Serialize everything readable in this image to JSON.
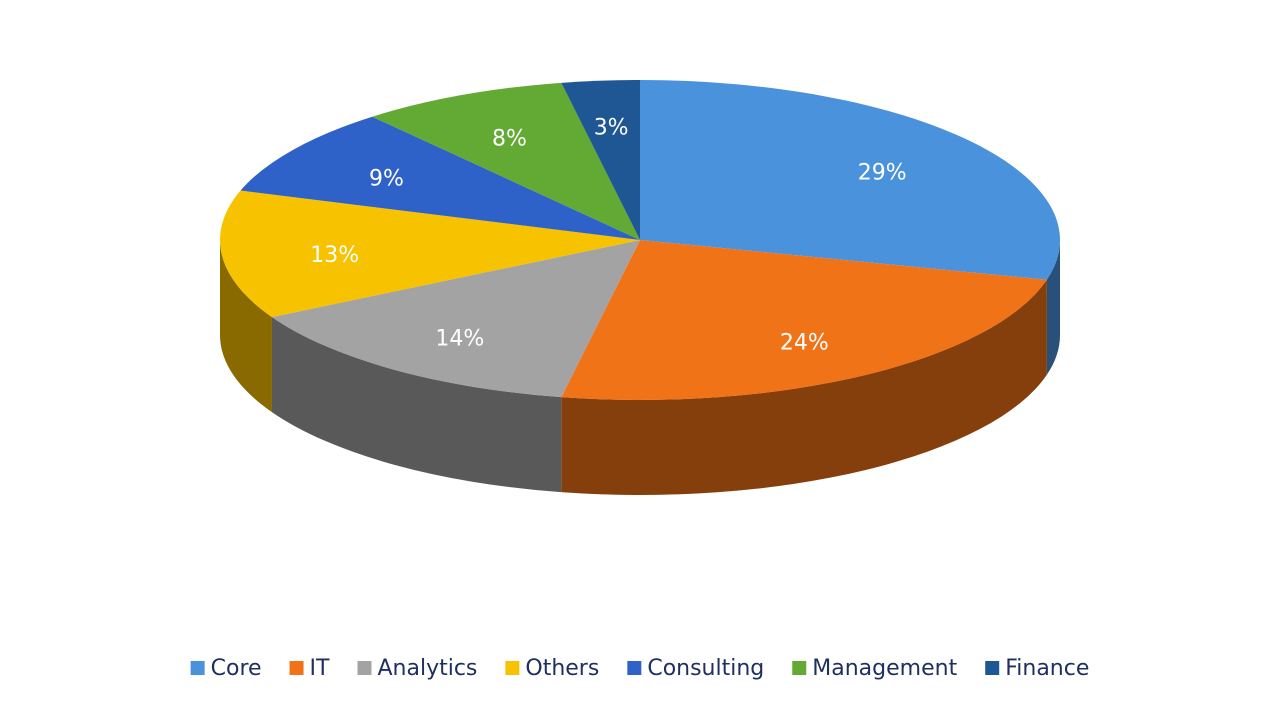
{
  "chart_data": {
    "type": "pie",
    "pie_3d": true,
    "categories": [
      "Core",
      "IT",
      "Analytics",
      "Others",
      "Consulting",
      "Management",
      "Finance"
    ],
    "values": [
      29,
      24,
      14,
      13,
      9,
      8,
      3
    ],
    "value_labels": [
      "29%",
      "24%",
      "14%",
      "13%",
      "9%",
      "8%",
      "3%"
    ],
    "colors": [
      "#4a93dc",
      "#f07318",
      "#a3a3a3",
      "#f7c200",
      "#2f62c8",
      "#62aa33",
      "#1f5694"
    ],
    "legend": "bottom"
  }
}
